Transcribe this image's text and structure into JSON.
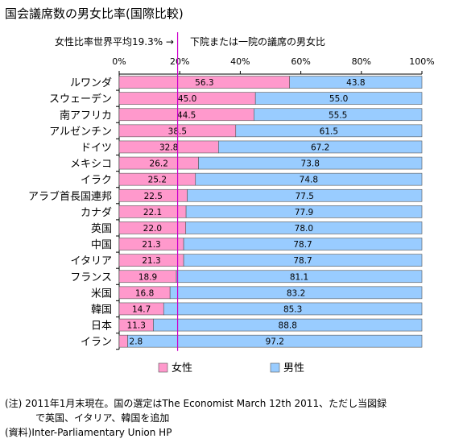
{
  "title": "国会議席数の男女比率(国際比較)",
  "avg_note": "女性比率世界平均19.3% →",
  "subtitle": "下院または一院の議席の男女比",
  "notes": {
    "note_line1": "(注) 2011年1月末現在。国の選定はThe Economist March 12th 2011、ただし当図録",
    "note_line2": "で英国、イタリア、韓国を追加",
    "source": "(資料)Inter-Parliamentary Union HP"
  },
  "chart_data": {
    "type": "bar",
    "orientation": "horizontal",
    "stacked": true,
    "percent_stacked": true,
    "title": "国会議席数の男女比率(国際比較)",
    "subtitle": "下院または一院の議席の男女比",
    "categories": [
      "ルワンダ",
      "スウェーデン",
      "南アフリカ",
      "アルゼンチン",
      "ドイツ",
      "メキシコ",
      "イラク",
      "アラブ首長国連邦",
      "カナダ",
      "英国",
      "中国",
      "イタリア",
      "フランス",
      "米国",
      "韓国",
      "日本",
      "イラン"
    ],
    "series": [
      {
        "name": "女性",
        "color": "#ff99cc",
        "values": [
          56.3,
          45.0,
          44.5,
          38.5,
          32.8,
          26.2,
          25.2,
          22.5,
          22.1,
          22.0,
          21.3,
          21.3,
          18.9,
          16.8,
          14.7,
          11.3,
          2.8
        ],
        "labels": [
          "56.3",
          "45.0",
          "44.5",
          "38.5",
          "32.8",
          "26.2",
          "25.2",
          "22.5",
          "22.1",
          "22.0",
          "21.3",
          "21.3",
          "18.9",
          "16.8",
          "14.7",
          "11.3",
          "2.8"
        ]
      },
      {
        "name": "男性",
        "color": "#99ccff",
        "values": [
          43.8,
          55.0,
          55.5,
          61.5,
          67.2,
          73.8,
          74.8,
          77.5,
          77.9,
          78.0,
          78.7,
          78.7,
          81.1,
          83.2,
          85.3,
          88.8,
          97.2
        ],
        "labels": [
          "43.8",
          "55.0",
          "55.5",
          "61.5",
          "67.2",
          "73.8",
          "74.8",
          "77.5",
          "77.9",
          "78.0",
          "78.7",
          "78.7",
          "81.1",
          "83.2",
          "85.3",
          "88.8",
          "97.2"
        ]
      }
    ],
    "x_ticks": [
      "0%",
      "20%",
      "40%",
      "60%",
      "80%",
      "100%"
    ],
    "xlim": [
      0,
      100
    ],
    "reference_line": {
      "value": 19.3,
      "label": "女性比率世界平均19.3% →",
      "color": "#cc00cc"
    },
    "grid": false,
    "legend_position": "bottom"
  }
}
